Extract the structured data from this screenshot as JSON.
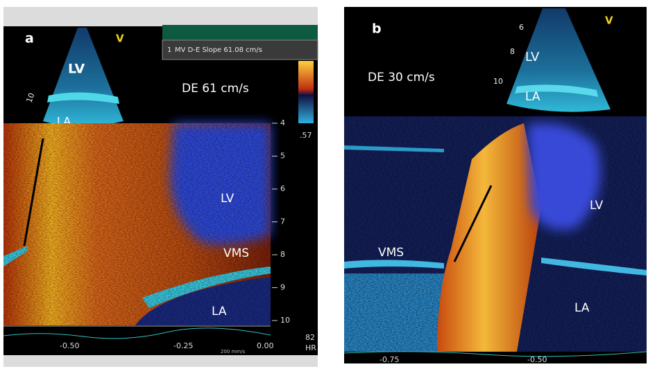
{
  "panels": [
    {
      "label": "a",
      "marker": "V",
      "sector_labels": [
        "LV",
        "LA"
      ],
      "sector_depth": "10",
      "measurement": "DE 61 cm/s",
      "readout": {
        "index": "1",
        "text": "MV D-E Slope 61.08 cm/s"
      },
      "color_bar_label": ".57",
      "depth_ticks": [
        "4",
        "5",
        "6",
        "7",
        "8",
        "9",
        "10"
      ],
      "structure_labels": [
        "LV",
        "VMS",
        "LA"
      ],
      "time_ticks": [
        "-0.50",
        "-0.25",
        "0.00"
      ],
      "heart_rate": "82",
      "heart_rate_unit": "HR",
      "sweep_speed": "200 mm/s"
    },
    {
      "label": "b",
      "marker": "V",
      "sector_labels": [
        "LV",
        "LA"
      ],
      "sector_depths": [
        "6",
        "8",
        "10"
      ],
      "measurement": "DE 30 cm/s",
      "structure_labels": [
        "VMS",
        "LV",
        "LA"
      ],
      "time_ticks": [
        "-0.75",
        "-0.50"
      ]
    }
  ]
}
